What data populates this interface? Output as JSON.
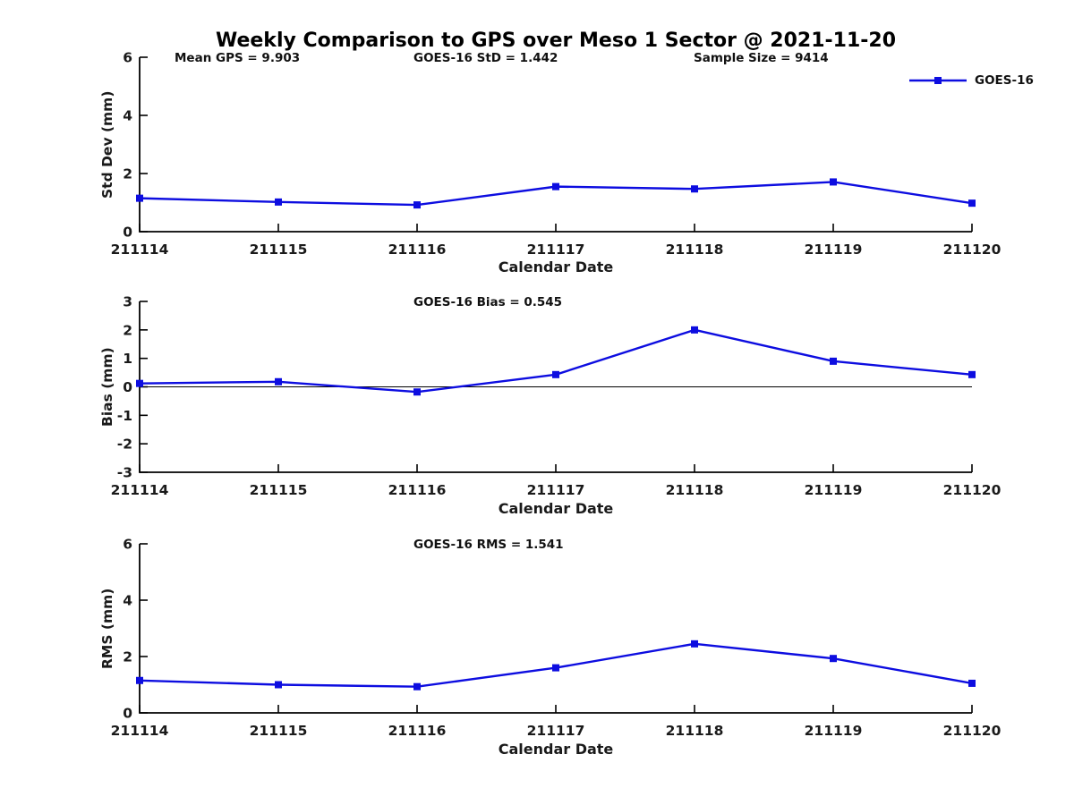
{
  "header": {
    "title": "Weekly Comparison to GPS over Meso 1 Sector @ 2021-11-20",
    "annotations": {
      "mean_gps": "Mean GPS = 9.903",
      "goes16_std": "GOES-16 StD = 1.442",
      "sample_size": "Sample Size = 9414"
    }
  },
  "legend": {
    "label": "GOES-16",
    "position": "top-right"
  },
  "colors": {
    "series": "#0d0de0",
    "axis": "#000000",
    "tick_text": "#1a1a1a",
    "background": "#ffffff"
  },
  "chart_data": [
    {
      "type": "line",
      "title": "",
      "categories": [
        "211114",
        "211115",
        "211116",
        "211117",
        "211118",
        "211119",
        "211120"
      ],
      "series": [
        {
          "name": "GOES-16",
          "values": [
            1.15,
            1.02,
            0.92,
            1.55,
            1.47,
            1.71,
            0.98
          ]
        }
      ],
      "xlabel": "Calendar Date",
      "ylabel": "Std Dev (mm)",
      "ylim": [
        0,
        6
      ],
      "yticks": [
        0,
        2,
        4,
        6
      ],
      "grid": false,
      "zero_line": false,
      "marker": "square",
      "legend_position": "top-right"
    },
    {
      "type": "line",
      "title": "GOES-16 Bias  = 0.545",
      "categories": [
        "211114",
        "211115",
        "211116",
        "211117",
        "211118",
        "211119",
        "211120"
      ],
      "series": [
        {
          "name": "GOES-16",
          "values": [
            0.12,
            0.18,
            -0.18,
            0.43,
            2.0,
            0.9,
            0.43
          ]
        }
      ],
      "xlabel": "Calendar Date",
      "ylabel": "Bias (mm)",
      "ylim": [
        -3,
        3
      ],
      "yticks": [
        -3,
        -2,
        -1,
        0,
        1,
        2,
        3
      ],
      "grid": false,
      "zero_line": true,
      "marker": "square",
      "legend_position": "none"
    },
    {
      "type": "line",
      "title": "GOES-16 RMS = 1.541",
      "categories": [
        "211114",
        "211115",
        "211116",
        "211117",
        "211118",
        "211119",
        "211120"
      ],
      "series": [
        {
          "name": "GOES-16",
          "values": [
            1.15,
            1.0,
            0.93,
            1.6,
            2.45,
            1.93,
            1.05
          ]
        }
      ],
      "xlabel": "Calendar Date",
      "ylabel": "RMS (mm)",
      "ylim": [
        0,
        6
      ],
      "yticks": [
        0,
        2,
        4,
        6
      ],
      "grid": false,
      "zero_line": false,
      "marker": "square",
      "legend_position": "none"
    }
  ]
}
